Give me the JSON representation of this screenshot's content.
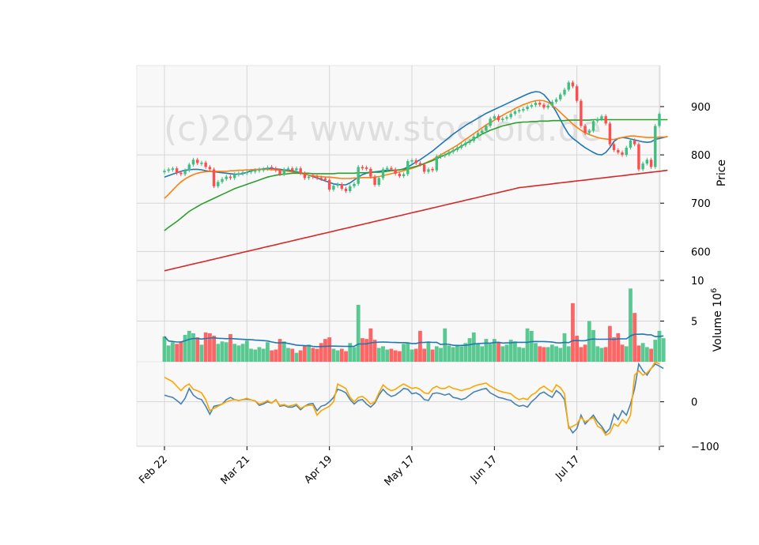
{
  "watermark": "(c)2024 www.stockoid.de",
  "x_axis": {
    "tick_labels": [
      {
        "label": "Feb 22",
        "day": 0
      },
      {
        "label": "Mar 21",
        "day": 20
      },
      {
        "label": "Apr 19",
        "day": 40
      },
      {
        "label": "May 17",
        "day": 60
      },
      {
        "label": "Jun 17",
        "day": 80
      },
      {
        "label": "Jul 17",
        "day": 100
      },
      {
        "label": "",
        "day": 120
      }
    ]
  },
  "colors": {
    "up": "#3dbf7f",
    "down": "#ff4c4c",
    "ma_blue": "#1f77b4",
    "ma_orange": "#ff7f0e",
    "ma_green": "#2ca02c",
    "ma_red": "#d62728",
    "osc_blue": "#4682b4",
    "osc_orange": "#ffa500",
    "panel_bg": "#f8f8f8",
    "grid": "#d6d6d6"
  },
  "chart_data": [
    {
      "type": "candlestick",
      "panel": "price",
      "ylabel": "Price",
      "ylim": [
        540,
        985
      ],
      "yticks": [
        600,
        700,
        800,
        900
      ],
      "grid": true,
      "days": 120,
      "close": [
        767,
        770,
        772,
        762,
        760,
        768,
        780,
        790,
        783,
        784,
        775,
        770,
        735,
        744,
        750,
        755,
        752,
        760,
        762,
        764,
        765,
        767,
        768,
        770,
        771,
        774,
        772,
        768,
        760,
        770,
        772,
        768,
        772,
        762,
        752,
        755,
        754,
        752,
        750,
        748,
        728,
        736,
        739,
        730,
        725,
        735,
        740,
        775,
        772,
        771,
        755,
        738,
        752,
        770,
        773,
        770,
        761,
        756,
        760,
        787,
        789,
        783,
        780,
        765,
        770,
        768,
        797,
        799,
        801,
        806,
        810,
        815,
        820,
        825,
        829,
        838,
        845,
        850,
        860,
        875,
        880,
        872,
        875,
        878,
        885,
        890,
        893,
        895,
        900,
        903,
        908,
        904,
        898,
        902,
        910,
        915,
        925,
        935,
        950,
        942,
        912,
        860,
        845,
        850,
        870,
        874,
        880,
        865,
        822,
        810,
        805,
        800,
        815,
        830,
        822,
        770,
        782,
        790,
        775,
        860,
        885,
        895,
        900
      ],
      "up": [
        true,
        true,
        true,
        false,
        false,
        true,
        true,
        true,
        false,
        true,
        false,
        false,
        false,
        true,
        true,
        true,
        false,
        true,
        true,
        true,
        true,
        true,
        true,
        true,
        true,
        true,
        false,
        false,
        false,
        true,
        true,
        false,
        true,
        false,
        false,
        true,
        false,
        false,
        false,
        false,
        false,
        true,
        true,
        false,
        false,
        true,
        true,
        true,
        false,
        false,
        false,
        false,
        true,
        true,
        true,
        false,
        false,
        false,
        true,
        true,
        true,
        false,
        false,
        false,
        true,
        false,
        true,
        true,
        true,
        true,
        true,
        true,
        true,
        true,
        true,
        true,
        true,
        true,
        true,
        true,
        true,
        false,
        true,
        true,
        true,
        true,
        true,
        true,
        true,
        true,
        true,
        false,
        false,
        true,
        true,
        true,
        true,
        true,
        true,
        false,
        false,
        false,
        false,
        true,
        true,
        true,
        true,
        false,
        false,
        false,
        false,
        false,
        true,
        true,
        false,
        false,
        true,
        true,
        false,
        true,
        true,
        true,
        true
      ],
      "series": [
        {
          "name": "",
          "color_key": "ma_blue",
          "values": [
            754,
            757,
            760,
            763,
            766,
            768,
            769,
            770,
            770,
            769,
            767,
            766,
            765,
            764,
            763,
            762,
            761,
            760,
            760,
            761,
            764,
            767,
            769,
            770,
            771,
            772,
            772,
            771,
            770,
            769,
            768,
            767,
            765,
            763,
            761,
            758,
            755,
            752,
            749,
            746,
            743,
            740,
            739,
            738,
            738,
            742,
            748,
            754,
            759,
            762,
            764,
            765,
            766,
            767,
            768,
            768,
            768,
            769,
            771,
            775,
            780,
            785,
            790,
            796,
            802,
            808,
            815,
            822,
            829,
            836,
            843,
            849,
            855,
            861,
            866,
            871,
            876,
            881,
            886,
            890,
            894,
            898,
            902,
            906,
            910,
            914,
            918,
            922,
            926,
            929,
            931,
            930,
            925,
            915,
            903,
            889,
            873,
            857,
            843,
            834,
            828,
            821,
            815,
            810,
            805,
            801,
            800,
            805,
            815,
            828,
            834,
            836,
            835,
            833,
            831,
            829,
            827,
            826,
            827,
            832,
            834,
            836,
            838
          ]
        },
        {
          "name": "",
          "color_key": "ma_orange",
          "values": [
            710,
            718,
            727,
            736,
            744,
            750,
            755,
            759,
            762,
            764,
            765,
            766,
            766,
            766,
            766,
            766,
            767,
            767,
            768,
            768,
            769,
            769,
            770,
            770,
            770,
            770,
            769,
            769,
            768,
            767,
            766,
            765,
            763,
            762,
            760,
            758,
            757,
            756,
            755,
            754,
            754,
            753,
            752,
            751,
            751,
            751,
            752,
            752,
            753,
            753,
            753,
            754,
            755,
            757,
            759,
            761,
            763,
            765,
            767,
            770,
            772,
            775,
            778,
            782,
            786,
            790,
            795,
            800,
            805,
            810,
            815,
            820,
            826,
            832,
            838,
            844,
            850,
            856,
            862,
            867,
            872,
            877,
            882,
            887,
            891,
            896,
            900,
            904,
            907,
            910,
            912,
            913,
            912,
            909,
            903,
            896,
            888,
            880,
            872,
            864,
            857,
            851,
            846,
            842,
            839,
            836,
            834,
            833,
            832,
            832,
            834,
            836,
            838,
            839,
            839,
            838,
            837,
            836,
            836,
            836,
            837,
            837,
            838
          ]
        },
        {
          "name": "",
          "color_key": "ma_green",
          "values": [
            643,
            650,
            656,
            662,
            669,
            676,
            683,
            688,
            693,
            698,
            702,
            706,
            710,
            714,
            718,
            722,
            726,
            730,
            733,
            736,
            739,
            742,
            745,
            748,
            751,
            754,
            756,
            758,
            759,
            760,
            761,
            762,
            762,
            762,
            762,
            762,
            761,
            761,
            761,
            761,
            761,
            761,
            762,
            762,
            762,
            762,
            762,
            763,
            763,
            763,
            764,
            764,
            764,
            765,
            766,
            767,
            768,
            769,
            770,
            772,
            774,
            776,
            779,
            782,
            785,
            788,
            792,
            796,
            800,
            804,
            808,
            813,
            818,
            823,
            828,
            833,
            838,
            843,
            847,
            851,
            854,
            857,
            860,
            862,
            864,
            866,
            867,
            868,
            868,
            869,
            869,
            870,
            870,
            870,
            871,
            871,
            871,
            871,
            872,
            872,
            872,
            872,
            872,
            872,
            873,
            873,
            873,
            873,
            873,
            873,
            873,
            873,
            873,
            873,
            873,
            873,
            873,
            873,
            873,
            873,
            873,
            873,
            873
          ]
        },
        {
          "name": "",
          "color_key": "ma_red",
          "values": [
            560,
            562,
            564,
            566,
            568,
            570,
            572,
            574,
            576,
            578,
            580,
            582,
            584,
            586,
            588,
            590,
            592,
            594,
            596,
            598,
            600,
            602,
            604,
            606,
            608,
            610,
            612,
            614,
            616,
            618,
            620,
            622,
            624,
            626,
            628,
            630,
            632,
            634,
            636,
            638,
            640,
            642,
            644,
            646,
            648,
            650,
            652,
            654,
            656,
            658,
            660,
            662,
            664,
            666,
            668,
            670,
            672,
            674,
            676,
            678,
            680,
            682,
            684,
            686,
            688,
            690,
            692,
            694,
            696,
            698,
            700,
            702,
            704,
            706,
            708,
            710,
            712,
            714,
            716,
            718,
            720,
            722,
            724,
            726,
            728,
            730,
            732,
            733,
            734,
            735,
            736,
            737,
            738,
            739,
            740,
            741,
            742,
            743,
            744,
            745,
            746,
            747,
            748,
            749,
            750,
            751,
            752,
            753,
            754,
            755,
            756,
            757,
            758,
            759,
            760,
            761,
            762,
            763,
            764,
            765,
            766,
            767,
            768
          ]
        }
      ]
    },
    {
      "type": "bar",
      "panel": "volume",
      "ylabel": "Volume  10",
      "ylabel_exponent": "6",
      "ylim": [
        0,
        10
      ],
      "yticks": [
        5,
        10
      ],
      "values": [
        3.1,
        2.0,
        2.4,
        2.2,
        2.5,
        3.3,
        3.8,
        3.5,
        3.0,
        2.1,
        3.6,
        3.5,
        3.2,
        2.2,
        2.5,
        2.4,
        3.4,
        2.2,
        2.0,
        2.2,
        2.6,
        1.6,
        1.5,
        1.8,
        1.6,
        2.4,
        1.4,
        1.5,
        2.8,
        2.5,
        1.7,
        1.6,
        1.1,
        1.4,
        2.0,
        2.1,
        1.7,
        1.6,
        2.3,
        2.8,
        3.0,
        1.6,
        1.4,
        1.6,
        1.3,
        2.3,
        1.8,
        7.0,
        2.9,
        2.8,
        4.1,
        2.7,
        1.7,
        1.9,
        1.5,
        1.6,
        1.4,
        1.3,
        2.2,
        2.3,
        1.5,
        1.6,
        3.8,
        1.6,
        2.4,
        1.5,
        1.9,
        1.7,
        4.1,
        2.0,
        1.8,
        2.1,
        1.9,
        2.3,
        2.9,
        3.6,
        2.2,
        1.9,
        2.8,
        2.2,
        2.8,
        2.4,
        1.9,
        2.1,
        2.7,
        2.5,
        1.8,
        1.7,
        4.1,
        3.8,
        2.3,
        1.9,
        1.8,
        1.8,
        2.1,
        1.9,
        1.7,
        3.5,
        1.9,
        7.2,
        3.2,
        1.8,
        2.1,
        5.0,
        3.9,
        1.9,
        1.7,
        1.8,
        4.4,
        3.0,
        3.5,
        2.1,
        1.9,
        9.0,
        6.0,
        2.0,
        2.3,
        1.8,
        1.6,
        2.7,
        3.8,
        2.9
      ]
    },
    {
      "type": "line",
      "panel": "oscillator",
      "ylim": [
        -100,
        90
      ],
      "yticks": [
        -100,
        0
      ],
      "series": [
        {
          "name": "",
          "color_key": "osc_blue",
          "values": [
            15,
            12,
            10,
            3,
            -5,
            8,
            30,
            15,
            8,
            5,
            -10,
            -28,
            -10,
            -8,
            -5,
            5,
            10,
            5,
            3,
            5,
            6,
            4,
            2,
            -8,
            -5,
            0,
            -3,
            5,
            -10,
            -8,
            -12,
            -12,
            -8,
            -18,
            -10,
            -5,
            -4,
            -20,
            -10,
            -7,
            0,
            10,
            28,
            25,
            20,
            5,
            -5,
            3,
            5,
            -5,
            -12,
            -3,
            15,
            28,
            18,
            12,
            15,
            22,
            30,
            28,
            18,
            20,
            15,
            5,
            3,
            18,
            20,
            18,
            15,
            18,
            10,
            8,
            5,
            8,
            15,
            22,
            25,
            28,
            30,
            20,
            15,
            10,
            8,
            5,
            3,
            -5,
            -10,
            -8,
            -12,
            0,
            8,
            18,
            22,
            15,
            10,
            25,
            18,
            5,
            -55,
            -70,
            -60,
            -30,
            -50,
            -40,
            -30,
            -45,
            -55,
            -70,
            -60,
            -28,
            -40,
            -20,
            -30,
            -5,
            30,
            85,
            70,
            60,
            75,
            85,
            80,
            75
          ]
        },
        {
          "name": "",
          "color_key": "osc_orange",
          "values": [
            55,
            50,
            45,
            35,
            25,
            35,
            40,
            28,
            25,
            20,
            5,
            -20,
            -15,
            -10,
            -5,
            0,
            3,
            5,
            3,
            5,
            8,
            4,
            2,
            -5,
            -2,
            3,
            -3,
            4,
            -8,
            -6,
            -10,
            -8,
            -5,
            -15,
            -10,
            -8,
            -8,
            -30,
            -20,
            -15,
            -10,
            0,
            40,
            35,
            30,
            10,
            0,
            10,
            12,
            5,
            -5,
            0,
            20,
            38,
            30,
            25,
            28,
            35,
            40,
            35,
            30,
            32,
            28,
            20,
            18,
            30,
            35,
            30,
            30,
            35,
            30,
            28,
            25,
            28,
            30,
            35,
            38,
            40,
            42,
            35,
            30,
            25,
            22,
            20,
            18,
            10,
            5,
            8,
            5,
            15,
            20,
            30,
            35,
            28,
            22,
            38,
            32,
            18,
            -60,
            -55,
            -50,
            -35,
            -45,
            -40,
            -35,
            -55,
            -60,
            -75,
            -70,
            -50,
            -55,
            -40,
            -48,
            -30,
            60,
            70,
            60,
            65,
            75,
            90,
            85
          ]
        }
      ]
    }
  ]
}
